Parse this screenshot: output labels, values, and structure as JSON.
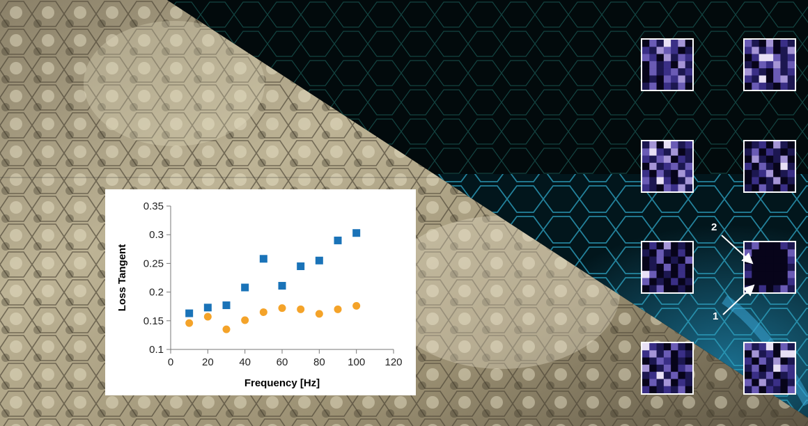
{
  "chart_data": {
    "type": "scatter",
    "xlabel": "Frequency [Hz]",
    "ylabel": "Loss Tangent",
    "xlim": [
      0,
      120
    ],
    "ylim": [
      0.1,
      0.35
    ],
    "x_ticks": [
      0,
      20,
      40,
      60,
      80,
      100,
      120
    ],
    "y_ticks": [
      "0.1",
      "0.15",
      "0.2",
      "0.25",
      "0.3",
      "0.35"
    ],
    "grid": false,
    "legend": "none",
    "series": [
      {
        "marker": "square",
        "color": "#1a73b8",
        "x": [
          10,
          20,
          30,
          40,
          50,
          60,
          70,
          80,
          90,
          100
        ],
        "y": [
          0.163,
          0.173,
          0.177,
          0.208,
          0.258,
          0.211,
          0.245,
          0.255,
          0.29,
          0.303
        ]
      },
      {
        "marker": "circle",
        "color": "#f4a329",
        "x": [
          10,
          20,
          30,
          40,
          50,
          60,
          70,
          80,
          90,
          100
        ],
        "y": [
          0.146,
          0.157,
          0.135,
          0.151,
          0.165,
          0.172,
          0.17,
          0.162,
          0.17,
          0.176
        ]
      }
    ]
  },
  "tile_colors": [
    "#07041a",
    "#1c1750",
    "#3a2f86",
    "#6a5bb5",
    "#a595d6",
    "#e8e0f5"
  ],
  "tiles": [
    [
      0,
      3,
      1,
      5,
      2,
      4,
      0,
      2,
      1,
      4,
      3,
      2,
      0,
      1,
      3,
      2,
      0,
      4,
      1,
      3,
      2,
      0,
      3,
      1,
      2,
      0,
      4,
      1,
      0,
      3,
      1,
      2,
      3,
      1,
      2,
      0,
      1,
      0,
      3,
      2,
      4,
      1,
      1,
      3,
      0,
      2,
      1,
      3,
      0
    ],
    [
      3,
      1,
      0,
      4,
      0,
      2,
      1,
      2,
      4,
      1,
      3,
      0,
      1,
      4,
      0,
      2,
      5,
      5,
      3,
      1,
      2,
      1,
      0,
      3,
      2,
      4,
      1,
      3,
      4,
      2,
      1,
      0,
      3,
      1,
      2,
      2,
      1,
      5,
      0,
      3,
      4,
      1,
      0,
      3,
      2,
      1,
      0,
      2,
      1
    ],
    [
      1,
      4,
      0,
      5,
      3,
      1,
      2,
      3,
      5,
      2,
      1,
      4,
      0,
      1,
      2,
      1,
      3,
      4,
      0,
      2,
      1,
      0,
      4,
      1,
      2,
      3,
      1,
      3,
      2,
      0,
      3,
      1,
      0,
      4,
      2,
      3,
      1,
      5,
      2,
      0,
      1,
      4,
      2,
      1,
      0,
      3,
      2,
      4,
      1
    ],
    [
      0,
      1,
      2,
      0,
      4,
      1,
      0,
      1,
      3,
      0,
      2,
      1,
      0,
      1,
      0,
      4,
      1,
      0,
      1,
      4,
      0,
      2,
      0,
      3,
      1,
      0,
      5,
      1,
      0,
      1,
      2,
      4,
      0,
      1,
      2,
      0,
      2,
      0,
      1,
      4,
      0,
      1,
      1,
      0,
      3,
      1,
      0,
      2,
      0
    ],
    [
      0,
      2,
      0,
      4,
      0,
      1,
      0,
      1,
      0,
      3,
      1,
      0,
      2,
      0,
      0,
      1,
      3,
      0,
      1,
      0,
      3,
      0,
      1,
      0,
      3,
      0,
      2,
      0,
      5,
      3,
      0,
      1,
      0,
      2,
      0,
      3,
      0,
      1,
      0,
      2,
      0,
      1,
      0,
      1,
      3,
      0,
      0,
      1,
      0
    ],
    [
      1,
      3,
      0,
      0,
      0,
      2,
      1,
      3,
      0,
      0,
      0,
      0,
      0,
      3,
      0,
      0,
      0,
      0,
      0,
      0,
      2,
      1,
      0,
      0,
      0,
      0,
      0,
      1,
      2,
      0,
      0,
      0,
      0,
      0,
      3,
      0,
      0,
      0,
      0,
      0,
      0,
      2,
      1,
      0,
      2,
      0,
      1,
      3,
      1
    ],
    [
      5,
      2,
      1,
      0,
      3,
      1,
      0,
      2,
      4,
      1,
      3,
      0,
      2,
      1,
      0,
      1,
      3,
      2,
      0,
      1,
      0,
      4,
      0,
      1,
      3,
      0,
      2,
      3,
      1,
      2,
      5,
      1,
      3,
      0,
      1,
      0,
      3,
      1,
      4,
      0,
      2,
      1,
      2,
      0,
      1,
      2,
      1,
      3,
      0
    ],
    [
      3,
      1,
      2,
      5,
      0,
      3,
      1,
      0,
      4,
      1,
      2,
      0,
      5,
      5,
      2,
      0,
      3,
      1,
      4,
      0,
      1,
      1,
      3,
      0,
      1,
      5,
      3,
      2,
      0,
      2,
      1,
      3,
      0,
      1,
      2,
      3,
      0,
      4,
      1,
      2,
      0,
      1,
      1,
      3,
      0,
      2,
      1,
      0,
      3
    ]
  ],
  "callouts": [
    "1",
    "2"
  ]
}
